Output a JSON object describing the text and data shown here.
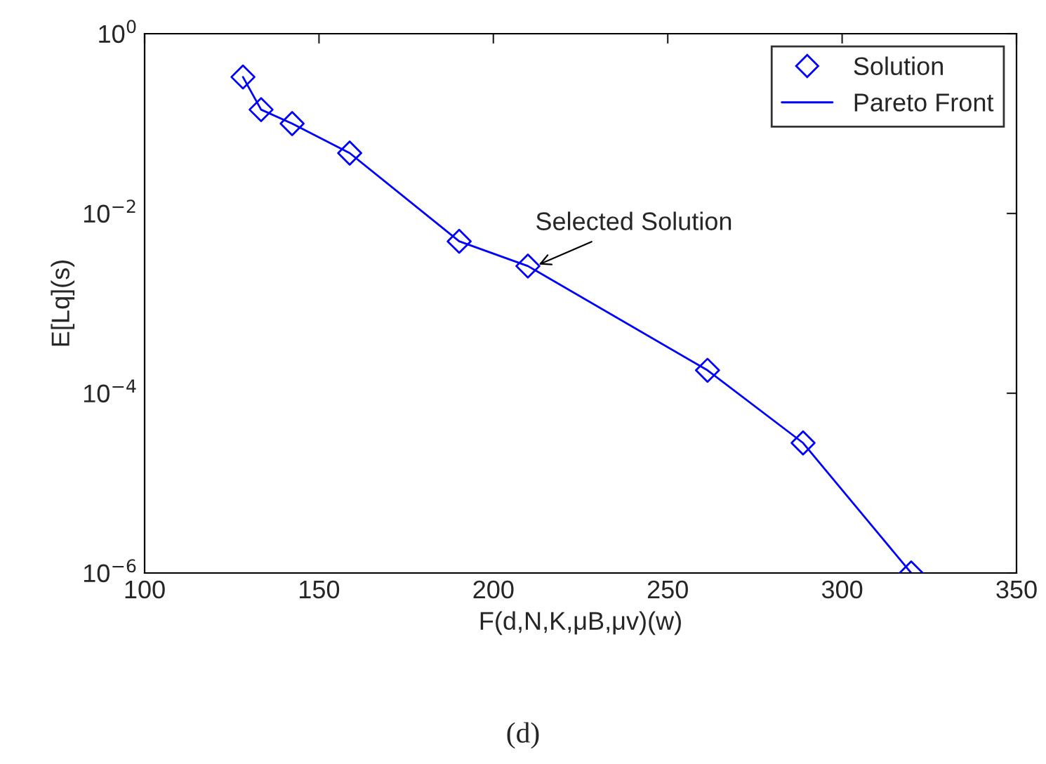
{
  "chart_data": {
    "type": "line",
    "xlabel": "F(d,N,K,μB,μv)(w)",
    "ylabel": "E[Lq](s)",
    "x": [
      128.2,
      133.4,
      142.3,
      158.8,
      190.2,
      209.9,
      261.4,
      288.8,
      319.8
    ],
    "series": [
      {
        "name": "Solution",
        "type": "scatter",
        "marker": "diamond",
        "color": "#0000ff",
        "values": [
          0.33,
          0.143,
          0.1,
          0.047,
          0.0049,
          0.0026,
          0.00018,
          2.8e-05,
          1e-06
        ]
      },
      {
        "name": "Pareto Front",
        "marker": "none",
        "line_style": "solid",
        "color": "#0000ff",
        "values": [
          0.33,
          0.143,
          0.1,
          0.047,
          0.0049,
          0.0026,
          0.00018,
          2.8e-05,
          1e-06
        ]
      }
    ],
    "log": "y",
    "xlim": [
      100,
      350
    ],
    "xticks": [
      100,
      150,
      200,
      250,
      300,
      350
    ],
    "ylim": [
      1e-06,
      1
    ],
    "yticks": [
      {
        "value": 1e-06,
        "label": "10$^{−6}$"
      },
      {
        "value": 0.0001,
        "label": "10$^{−4}$"
      },
      {
        "value": 0.01,
        "label": "10$^{−2}$"
      },
      {
        "value": 1,
        "label": "10$^{0}$"
      }
    ],
    "legend": "top right",
    "grid": false,
    "annotations": [
      {
        "text": "Selected Solution",
        "x": 212,
        "y": 0.0026
      },
      "(d)"
    ]
  }
}
